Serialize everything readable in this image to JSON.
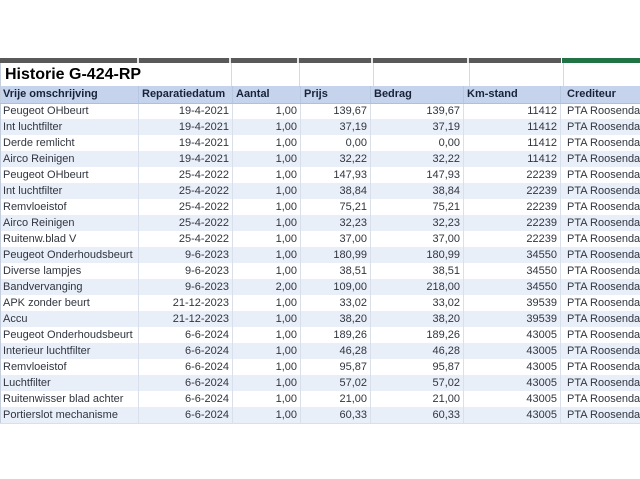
{
  "title": "Historie G-424-RP",
  "table": {
    "columns": [
      {
        "key": "vrije-omschrijving",
        "label": "Vrije omschrijving"
      },
      {
        "key": "reparatiedatum",
        "label": "Reparatiedatum"
      },
      {
        "key": "aantal",
        "label": "Aantal"
      },
      {
        "key": "prijs",
        "label": "Prijs"
      },
      {
        "key": "bedrag",
        "label": "Bedrag"
      },
      {
        "key": "km-stand",
        "label": "Km-stand"
      },
      {
        "key": "crediteur",
        "label": "Crediteur"
      }
    ],
    "rows": [
      [
        "Peugeot OHbeurt",
        "19-4-2021",
        "1,00",
        "139,67",
        "139,67",
        "11412",
        "PTA Roosendaal"
      ],
      [
        "Int luchtfilter",
        "19-4-2021",
        "1,00",
        "37,19",
        "37,19",
        "11412",
        "PTA Roosendaal"
      ],
      [
        "Derde remlicht",
        "19-4-2021",
        "1,00",
        "0,00",
        "0,00",
        "11412",
        "PTA Roosendaal"
      ],
      [
        "Airco Reinigen",
        "19-4-2021",
        "1,00",
        "32,22",
        "32,22",
        "11412",
        "PTA Roosendaal"
      ],
      [
        "Peugeot OHbeurt",
        "25-4-2022",
        "1,00",
        "147,93",
        "147,93",
        "22239",
        "PTA Roosendaal"
      ],
      [
        "Int luchtfilter",
        "25-4-2022",
        "1,00",
        "38,84",
        "38,84",
        "22239",
        "PTA Roosendaal"
      ],
      [
        "Remvloeistof",
        "25-4-2022",
        "1,00",
        "75,21",
        "75,21",
        "22239",
        "PTA Roosendaal"
      ],
      [
        "Airco Reinigen",
        "25-4-2022",
        "1,00",
        "32,23",
        "32,23",
        "22239",
        "PTA Roosendaal"
      ],
      [
        "Ruitenw.blad V",
        "25-4-2022",
        "1,00",
        "37,00",
        "37,00",
        "22239",
        "PTA Roosendaal"
      ],
      [
        "Peugeot Onderhoudsbeurt",
        "9-6-2023",
        "1,00",
        "180,99",
        "180,99",
        "34550",
        "PTA Roosendaal"
      ],
      [
        "Diverse lampjes",
        "9-6-2023",
        "1,00",
        "38,51",
        "38,51",
        "34550",
        "PTA Roosendaal"
      ],
      [
        "Bandvervanging",
        "9-6-2023",
        "2,00",
        "109,00",
        "218,00",
        "34550",
        "PTA Roosendaal"
      ],
      [
        "APK zonder beurt",
        "21-12-2023",
        "1,00",
        "33,02",
        "33,02",
        "39539",
        "PTA Roosendaal"
      ],
      [
        "Accu",
        "21-12-2023",
        "1,00",
        "38,20",
        "38,20",
        "39539",
        "PTA Roosendaal"
      ],
      [
        "Peugeot Onderhoudsbeurt",
        "6-6-2024",
        "1,00",
        "189,26",
        "189,26",
        "43005",
        "PTA Roosendaal"
      ],
      [
        "Interieur luchtfilter",
        "6-6-2024",
        "1,00",
        "46,28",
        "46,28",
        "43005",
        "PTA Roosendaal"
      ],
      [
        "Remvloeistof",
        "6-6-2024",
        "1,00",
        "95,87",
        "95,87",
        "43005",
        "PTA Roosendaal"
      ],
      [
        "Luchtfilter",
        "6-6-2024",
        "1,00",
        "57,02",
        "57,02",
        "43005",
        "PTA Roosendaal"
      ],
      [
        "Ruitenwisser blad achter",
        "6-6-2024",
        "1,00",
        "21,00",
        "21,00",
        "43005",
        "PTA Roosendaal"
      ],
      [
        "Portierslot mechanisme",
        "6-6-2024",
        "1,00",
        "60,33",
        "60,33",
        "43005",
        "PTA Roosendaal"
      ]
    ]
  },
  "colors": {
    "chrome_gray": "#595959",
    "selection_green": "#217346",
    "header_background": "#C5D4EC",
    "row_alternate": "#E9EFF8"
  }
}
